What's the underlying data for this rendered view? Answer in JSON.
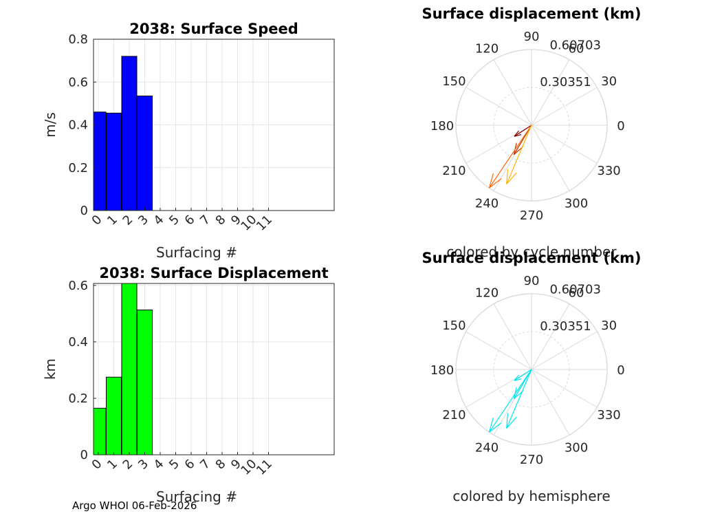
{
  "colors": {
    "speed_bar": "#0000ff",
    "displacement_bar": "#00ff00",
    "hemisphere_arrow": "#00e5ee"
  },
  "footer": "Argo WHOI 06-Feb-2026",
  "polar_top": {
    "title": "Surface displacement (km)",
    "caption": "colored by cycle number",
    "r_ticks": [
      "0.30351",
      "0.60703"
    ],
    "angle_labels": [
      "0",
      "30",
      "60",
      "90",
      "120",
      "150",
      "180",
      "210",
      "240",
      "270",
      "300",
      "330"
    ]
  },
  "polar_bottom": {
    "title": "Surface displacement (km)",
    "caption": "colored by hemisphere",
    "r_ticks": [
      "0.30351",
      "0.60703"
    ],
    "angle_labels": [
      "0",
      "30",
      "60",
      "90",
      "120",
      "150",
      "180",
      "210",
      "240",
      "270",
      "300",
      "330"
    ]
  },
  "chart_data": [
    {
      "type": "bar",
      "title": "2038: Surface Speed",
      "xlabel": "Surfacing #",
      "ylabel": "m/s",
      "categories": [
        "0",
        "1",
        "2",
        "3",
        "4",
        "5",
        "6",
        "7",
        "8",
        "9",
        "10",
        "11"
      ],
      "values": [
        0.46,
        0.455,
        0.72,
        0.535,
        0,
        0,
        0,
        0,
        0,
        0,
        0,
        0
      ],
      "ylim": [
        0,
        0.8
      ],
      "yticks": [
        "0",
        "0.2",
        "0.4",
        "0.6",
        "0.8"
      ],
      "grid": true
    },
    {
      "type": "bar",
      "title": "2038: Surface Displacement",
      "xlabel": "Surfacing #",
      "ylabel": "km",
      "categories": [
        "0",
        "1",
        "2",
        "3",
        "4",
        "5",
        "6",
        "7",
        "8",
        "9",
        "10",
        "11"
      ],
      "values": [
        0.165,
        0.275,
        0.607,
        0.513,
        0,
        0,
        0,
        0,
        0,
        0,
        0,
        0
      ],
      "ylim": [
        0,
        0.607
      ],
      "yticks": [
        "0",
        "0.2",
        "0.4",
        "0.6"
      ],
      "grid": true
    },
    {
      "type": "scatter",
      "subtype": "compass",
      "title": "Surface displacement (km)",
      "rlim": [
        0,
        0.60703
      ],
      "vectors": [
        {
          "angle_deg": 213,
          "r": 0.165,
          "color": "#8b0000"
        },
        {
          "angle_deg": 239,
          "r": 0.275,
          "color": "#c83200"
        },
        {
          "angle_deg": 236,
          "r": 0.607,
          "color": "#ff6400"
        },
        {
          "angle_deg": 247,
          "r": 0.513,
          "color": "#ffb400"
        }
      ]
    },
    {
      "type": "scatter",
      "subtype": "compass",
      "title": "Surface displacement (km)",
      "rlim": [
        0,
        0.60703
      ],
      "vectors": [
        {
          "angle_deg": 213,
          "r": 0.165,
          "color": "#00e5ee"
        },
        {
          "angle_deg": 239,
          "r": 0.275,
          "color": "#00e5ee"
        },
        {
          "angle_deg": 236,
          "r": 0.607,
          "color": "#00e5ee"
        },
        {
          "angle_deg": 247,
          "r": 0.513,
          "color": "#00e5ee"
        }
      ]
    }
  ]
}
